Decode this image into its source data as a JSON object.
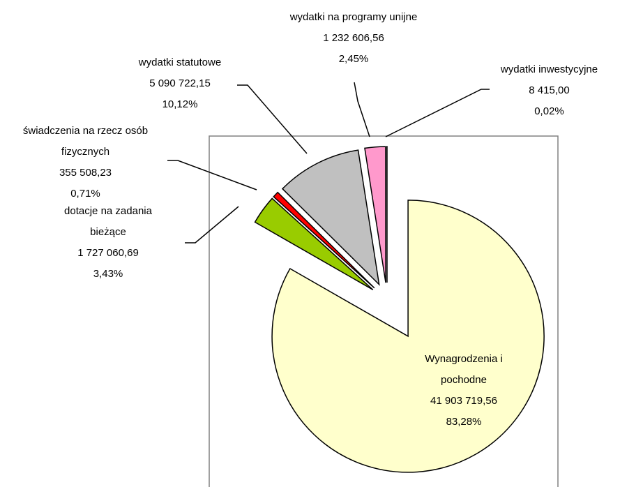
{
  "chart_data": {
    "type": "pie",
    "categories": [
      "Wynagrodzenia i pochodne",
      "dotacje na zadania bieżące",
      "świadczenia na rzecz osób fizycznych",
      "wydatki statutowe",
      "wydatki na programy unijne",
      "wydatki inwestycyjne"
    ],
    "values": [
      41903719.56,
      1727060.69,
      355508.23,
      5090722.15,
      1232606.56,
      8415.0
    ],
    "value_labels": [
      "41 903 719,56",
      "1 727 060,69",
      "355 508,23",
      "5 090 722,15",
      "1 232 606,56",
      "8 415,00"
    ],
    "percent_labels": [
      "83,28%",
      "3,43%",
      "0,71%",
      "10,12%",
      "2,45%",
      "0,02%"
    ],
    "colors": [
      "#ffffcc",
      "#99cc00",
      "#ff0000",
      "#c0c0c0",
      "#ff99cc",
      "#ffccff"
    ]
  }
}
